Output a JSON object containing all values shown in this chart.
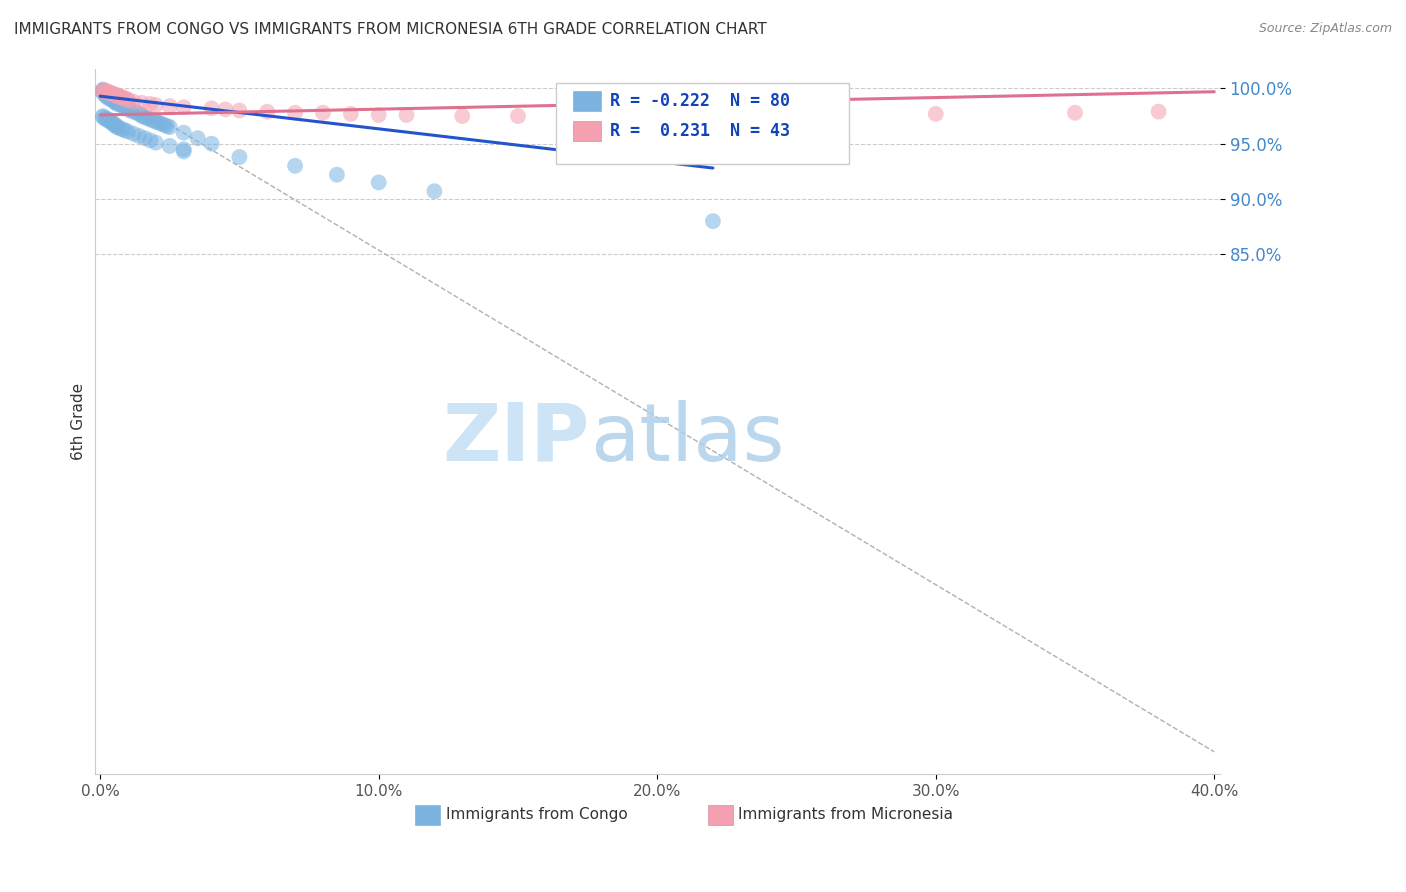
{
  "title": "IMMIGRANTS FROM CONGO VS IMMIGRANTS FROM MICRONESIA 6TH GRADE CORRELATION CHART",
  "source": "Source: ZipAtlas.com",
  "ylabel": "6th Grade",
  "x_min": -0.002,
  "x_max": 0.402,
  "y_min": 0.38,
  "y_max": 1.018,
  "x_tick_labels": [
    "0.0%",
    "10.0%",
    "20.0%",
    "30.0%",
    "40.0%"
  ],
  "x_tick_vals": [
    0.0,
    0.1,
    0.2,
    0.3,
    0.4
  ],
  "y_tick_labels": [
    "100.0%",
    "95.0%",
    "90.0%",
    "85.0%"
  ],
  "y_tick_vals": [
    1.0,
    0.95,
    0.9,
    0.85
  ],
  "congo_color": "#7ab3e0",
  "micronesia_color": "#f4a0b0",
  "congo_line_color": "#2255cc",
  "micronesia_line_color": "#e07090",
  "congo_R": -0.222,
  "congo_N": 80,
  "micronesia_R": 0.231,
  "micronesia_N": 43,
  "legend_label_congo": "Immigrants from Congo",
  "legend_label_micronesia": "Immigrants from Micronesia",
  "background_color": "#ffffff",
  "grid_color": "#cccccc",
  "congo_x": [
    0.001,
    0.001,
    0.001,
    0.001,
    0.002,
    0.002,
    0.002,
    0.002,
    0.002,
    0.003,
    0.003,
    0.003,
    0.003,
    0.003,
    0.004,
    0.004,
    0.004,
    0.005,
    0.005,
    0.005,
    0.006,
    0.006,
    0.006,
    0.007,
    0.007,
    0.008,
    0.008,
    0.009,
    0.009,
    0.01,
    0.01,
    0.011,
    0.012,
    0.013,
    0.014,
    0.015,
    0.015,
    0.016,
    0.017,
    0.018,
    0.019,
    0.02,
    0.021,
    0.022,
    0.023,
    0.024,
    0.025,
    0.03,
    0.035,
    0.04,
    0.001,
    0.001,
    0.002,
    0.002,
    0.003,
    0.003,
    0.004,
    0.004,
    0.005,
    0.005,
    0.006,
    0.006,
    0.007,
    0.008,
    0.009,
    0.01,
    0.012,
    0.014,
    0.016,
    0.018,
    0.02,
    0.025,
    0.03,
    0.03,
    0.05,
    0.07,
    0.085,
    0.1,
    0.12,
    0.22
  ],
  "congo_y": [
    0.999,
    0.998,
    0.997,
    0.996,
    0.997,
    0.996,
    0.995,
    0.994,
    0.993,
    0.995,
    0.994,
    0.993,
    0.992,
    0.991,
    0.992,
    0.991,
    0.99,
    0.99,
    0.989,
    0.988,
    0.988,
    0.987,
    0.986,
    0.987,
    0.986,
    0.985,
    0.984,
    0.984,
    0.983,
    0.982,
    0.981,
    0.98,
    0.979,
    0.978,
    0.977,
    0.976,
    0.975,
    0.974,
    0.973,
    0.972,
    0.971,
    0.97,
    0.969,
    0.968,
    0.967,
    0.966,
    0.965,
    0.96,
    0.955,
    0.95,
    0.975,
    0.974,
    0.973,
    0.972,
    0.972,
    0.971,
    0.97,
    0.969,
    0.968,
    0.967,
    0.966,
    0.965,
    0.964,
    0.963,
    0.962,
    0.961,
    0.959,
    0.957,
    0.955,
    0.953,
    0.951,
    0.948,
    0.945,
    0.943,
    0.938,
    0.93,
    0.922,
    0.915,
    0.907,
    0.88
  ],
  "micronesia_x": [
    0.001,
    0.001,
    0.002,
    0.002,
    0.003,
    0.003,
    0.004,
    0.004,
    0.005,
    0.005,
    0.006,
    0.006,
    0.007,
    0.007,
    0.008,
    0.008,
    0.009,
    0.01,
    0.01,
    0.012,
    0.015,
    0.018,
    0.02,
    0.025,
    0.03,
    0.04,
    0.045,
    0.05,
    0.06,
    0.07,
    0.08,
    0.09,
    0.1,
    0.11,
    0.13,
    0.15,
    0.17,
    0.19,
    0.21,
    0.23,
    0.3,
    0.35,
    0.38
  ],
  "micronesia_y": [
    0.998,
    0.997,
    0.998,
    0.997,
    0.997,
    0.996,
    0.996,
    0.995,
    0.995,
    0.994,
    0.994,
    0.993,
    0.993,
    0.992,
    0.992,
    0.991,
    0.991,
    0.99,
    0.989,
    0.988,
    0.987,
    0.986,
    0.985,
    0.984,
    0.983,
    0.982,
    0.981,
    0.98,
    0.979,
    0.978,
    0.978,
    0.977,
    0.976,
    0.976,
    0.975,
    0.975,
    0.975,
    0.975,
    0.976,
    0.977,
    0.977,
    0.978,
    0.979
  ],
  "congo_line_x0": 0.0,
  "congo_line_y0": 0.993,
  "congo_line_x1": 0.22,
  "congo_line_y1": 0.928,
  "micronesia_line_x0": 0.0,
  "micronesia_line_y0": 0.976,
  "micronesia_line_x1": 0.4,
  "micronesia_line_y1": 0.997,
  "dash_line_x0": 0.0,
  "dash_line_y0": 1.005,
  "dash_line_x1": 0.4,
  "dash_line_y1": 0.4
}
